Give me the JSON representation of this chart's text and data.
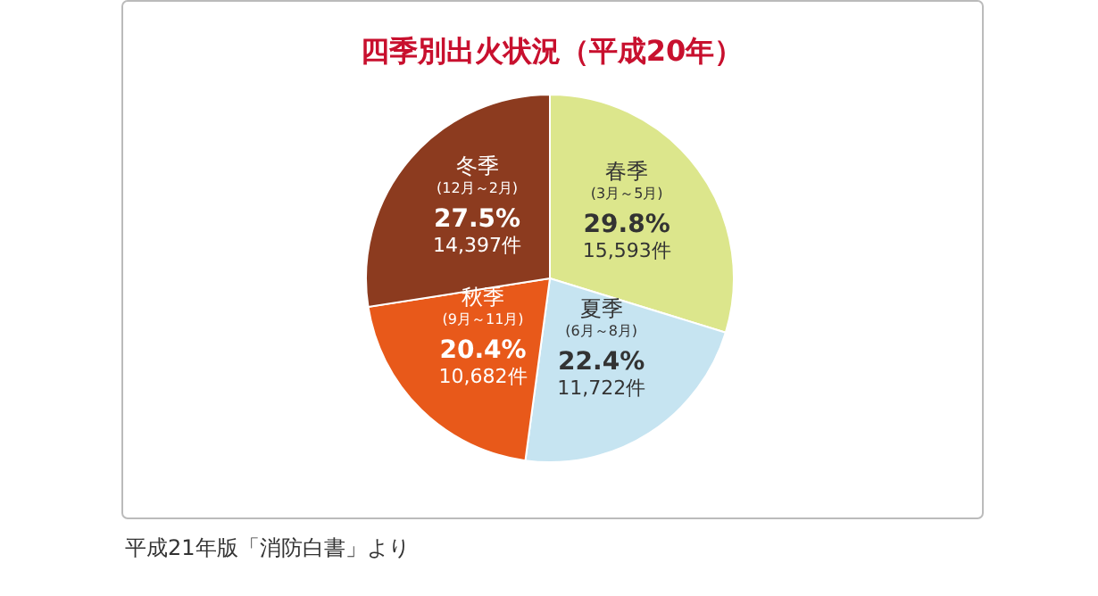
{
  "chart_data": {
    "type": "pie",
    "title": "四季別出火状況（平成20年）",
    "categories": [
      "春季(3月～5月)",
      "夏季(6月～8月)",
      "秋季(9月～11月)",
      "冬季(12月～2月)"
    ],
    "values": [
      15593,
      11722,
      10682,
      14397
    ],
    "colors": [
      "#dce68c",
      "#c6e4f1",
      "#e8591a",
      "#8c3b1f"
    ],
    "value_labels": [
      "15,593件",
      "11,722件",
      "10,682件",
      "14,397件"
    ],
    "annotations": [
      {
        "text": "29.8%",
        "x": "春季(3月～5月)"
      },
      {
        "text": "22.4%",
        "x": "夏季(6月～8月)"
      },
      {
        "text": "20.4%",
        "x": "秋季(9月～11月)"
      },
      {
        "text": "27.5%",
        "x": "冬季(12月～2月)"
      },
      "平成21年版「消防白書」より"
    ]
  }
}
